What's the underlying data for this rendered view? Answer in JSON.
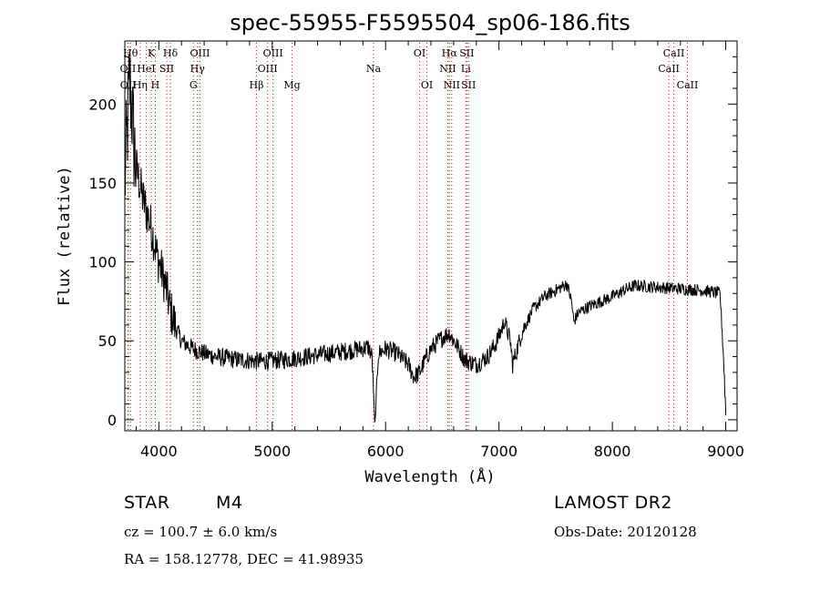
{
  "chart_data": {
    "type": "line",
    "title": "spec-55955-F5595504_sp06-186.fits",
    "xlabel": "Wavelength (Å)",
    "ylabel": "Flux (relative)",
    "xlim": [
      3700,
      9100
    ],
    "ylim": [
      -7,
      240
    ],
    "xticks": [
      4000,
      5000,
      6000,
      7000,
      8000,
      9000
    ],
    "yticks": [
      0,
      50,
      100,
      150,
      200
    ],
    "grid": false,
    "line_color": "#000000",
    "marker_color": "#ff0000",
    "spectrum_anchors": [
      {
        "x": 3700,
        "y": 150
      },
      {
        "x": 3720,
        "y": 180
      },
      {
        "x": 3740,
        "y": 215
      },
      {
        "x": 3760,
        "y": 200
      },
      {
        "x": 3780,
        "y": 175
      },
      {
        "x": 3800,
        "y": 160
      },
      {
        "x": 3830,
        "y": 150
      },
      {
        "x": 3860,
        "y": 140
      },
      {
        "x": 3900,
        "y": 130
      },
      {
        "x": 3940,
        "y": 120
      },
      {
        "x": 3980,
        "y": 105
      },
      {
        "x": 4020,
        "y": 95
      },
      {
        "x": 4060,
        "y": 85
      },
      {
        "x": 4100,
        "y": 70
      },
      {
        "x": 4150,
        "y": 58
      },
      {
        "x": 4200,
        "y": 50
      },
      {
        "x": 4300,
        "y": 45
      },
      {
        "x": 4400,
        "y": 42
      },
      {
        "x": 4500,
        "y": 40
      },
      {
        "x": 4700,
        "y": 38
      },
      {
        "x": 4900,
        "y": 37
      },
      {
        "x": 5100,
        "y": 38
      },
      {
        "x": 5300,
        "y": 40
      },
      {
        "x": 5500,
        "y": 42
      },
      {
        "x": 5700,
        "y": 44
      },
      {
        "x": 5850,
        "y": 46
      },
      {
        "x": 5880,
        "y": 40
      },
      {
        "x": 5895,
        "y": 15
      },
      {
        "x": 5905,
        "y": -5
      },
      {
        "x": 5915,
        "y": 10
      },
      {
        "x": 5935,
        "y": 42
      },
      {
        "x": 6000,
        "y": 45
      },
      {
        "x": 6100,
        "y": 42
      },
      {
        "x": 6200,
        "y": 35
      },
      {
        "x": 6250,
        "y": 27
      },
      {
        "x": 6300,
        "y": 30
      },
      {
        "x": 6350,
        "y": 38
      },
      {
        "x": 6400,
        "y": 45
      },
      {
        "x": 6500,
        "y": 52
      },
      {
        "x": 6560,
        "y": 55
      },
      {
        "x": 6620,
        "y": 48
      },
      {
        "x": 6700,
        "y": 38
      },
      {
        "x": 6800,
        "y": 35
      },
      {
        "x": 6900,
        "y": 40
      },
      {
        "x": 6970,
        "y": 48
      },
      {
        "x": 7050,
        "y": 62
      },
      {
        "x": 7100,
        "y": 50
      },
      {
        "x": 7120,
        "y": 35
      },
      {
        "x": 7200,
        "y": 55
      },
      {
        "x": 7300,
        "y": 70
      },
      {
        "x": 7400,
        "y": 78
      },
      {
        "x": 7500,
        "y": 82
      },
      {
        "x": 7600,
        "y": 86
      },
      {
        "x": 7640,
        "y": 75
      },
      {
        "x": 7660,
        "y": 62
      },
      {
        "x": 7700,
        "y": 68
      },
      {
        "x": 7800,
        "y": 72
      },
      {
        "x": 7900,
        "y": 75
      },
      {
        "x": 8000,
        "y": 78
      },
      {
        "x": 8100,
        "y": 82
      },
      {
        "x": 8200,
        "y": 85
      },
      {
        "x": 8400,
        "y": 84
      },
      {
        "x": 8600,
        "y": 83
      },
      {
        "x": 8800,
        "y": 82
      },
      {
        "x": 8950,
        "y": 80
      },
      {
        "x": 8980,
        "y": 40
      },
      {
        "x": 9000,
        "y": 5
      }
    ],
    "lines": [
      {
        "label": "OII",
        "x": 3727,
        "row": 1
      },
      {
        "label": "OII",
        "x": 3729,
        "row": 2
      },
      {
        "label": "Hθ",
        "x": 3750,
        "row": 0
      },
      {
        "label": "Hη",
        "x": 3835,
        "row": 2
      },
      {
        "label": "HeI",
        "x": 3889,
        "row": 1
      },
      {
        "label": "K",
        "x": 3934,
        "row": 0
      },
      {
        "label": "H",
        "x": 3969,
        "row": 2
      },
      {
        "label": "SII",
        "x": 4070,
        "row": 1
      },
      {
        "label": "Hδ",
        "x": 4102,
        "row": 0
      },
      {
        "label": "G",
        "x": 4305,
        "row": 2
      },
      {
        "label": "Hγ",
        "x": 4341,
        "row": 1
      },
      {
        "label": "OIII",
        "x": 4363,
        "row": 0
      },
      {
        "label": "Hβ",
        "x": 4861,
        "row": 2
      },
      {
        "label": "OIII",
        "x": 4959,
        "row": 1
      },
      {
        "label": "OIII",
        "x": 5007,
        "row": 0
      },
      {
        "label": "Mg",
        "x": 5175,
        "row": 2
      },
      {
        "label": "Na",
        "x": 5893,
        "row": 1
      },
      {
        "label": "OI",
        "x": 6300,
        "row": 0
      },
      {
        "label": "OI",
        "x": 6364,
        "row": 2
      },
      {
        "label": "NII",
        "x": 6548,
        "row": 1
      },
      {
        "label": "Hα",
        "x": 6563,
        "row": 0
      },
      {
        "label": "NII",
        "x": 6583,
        "row": 2
      },
      {
        "label": "Li",
        "x": 6708,
        "row": 1
      },
      {
        "label": "SII",
        "x": 6716,
        "row": 0
      },
      {
        "label": "SII",
        "x": 6731,
        "row": 2
      },
      {
        "label": "CaII",
        "x": 8498,
        "row": 1
      },
      {
        "label": "CaII",
        "x": 8542,
        "row": 0
      },
      {
        "label": "CaII",
        "x": 8662,
        "row": 2
      }
    ]
  },
  "info": {
    "object_class": "STAR",
    "subclass": "M4",
    "survey": "LAMOST DR2",
    "redshift": "cz = 100.7 ± 6.0 km/s",
    "obs_date": "Obs-Date: 20120128",
    "coords": "RA = 158.12778, DEC =  41.98935"
  }
}
